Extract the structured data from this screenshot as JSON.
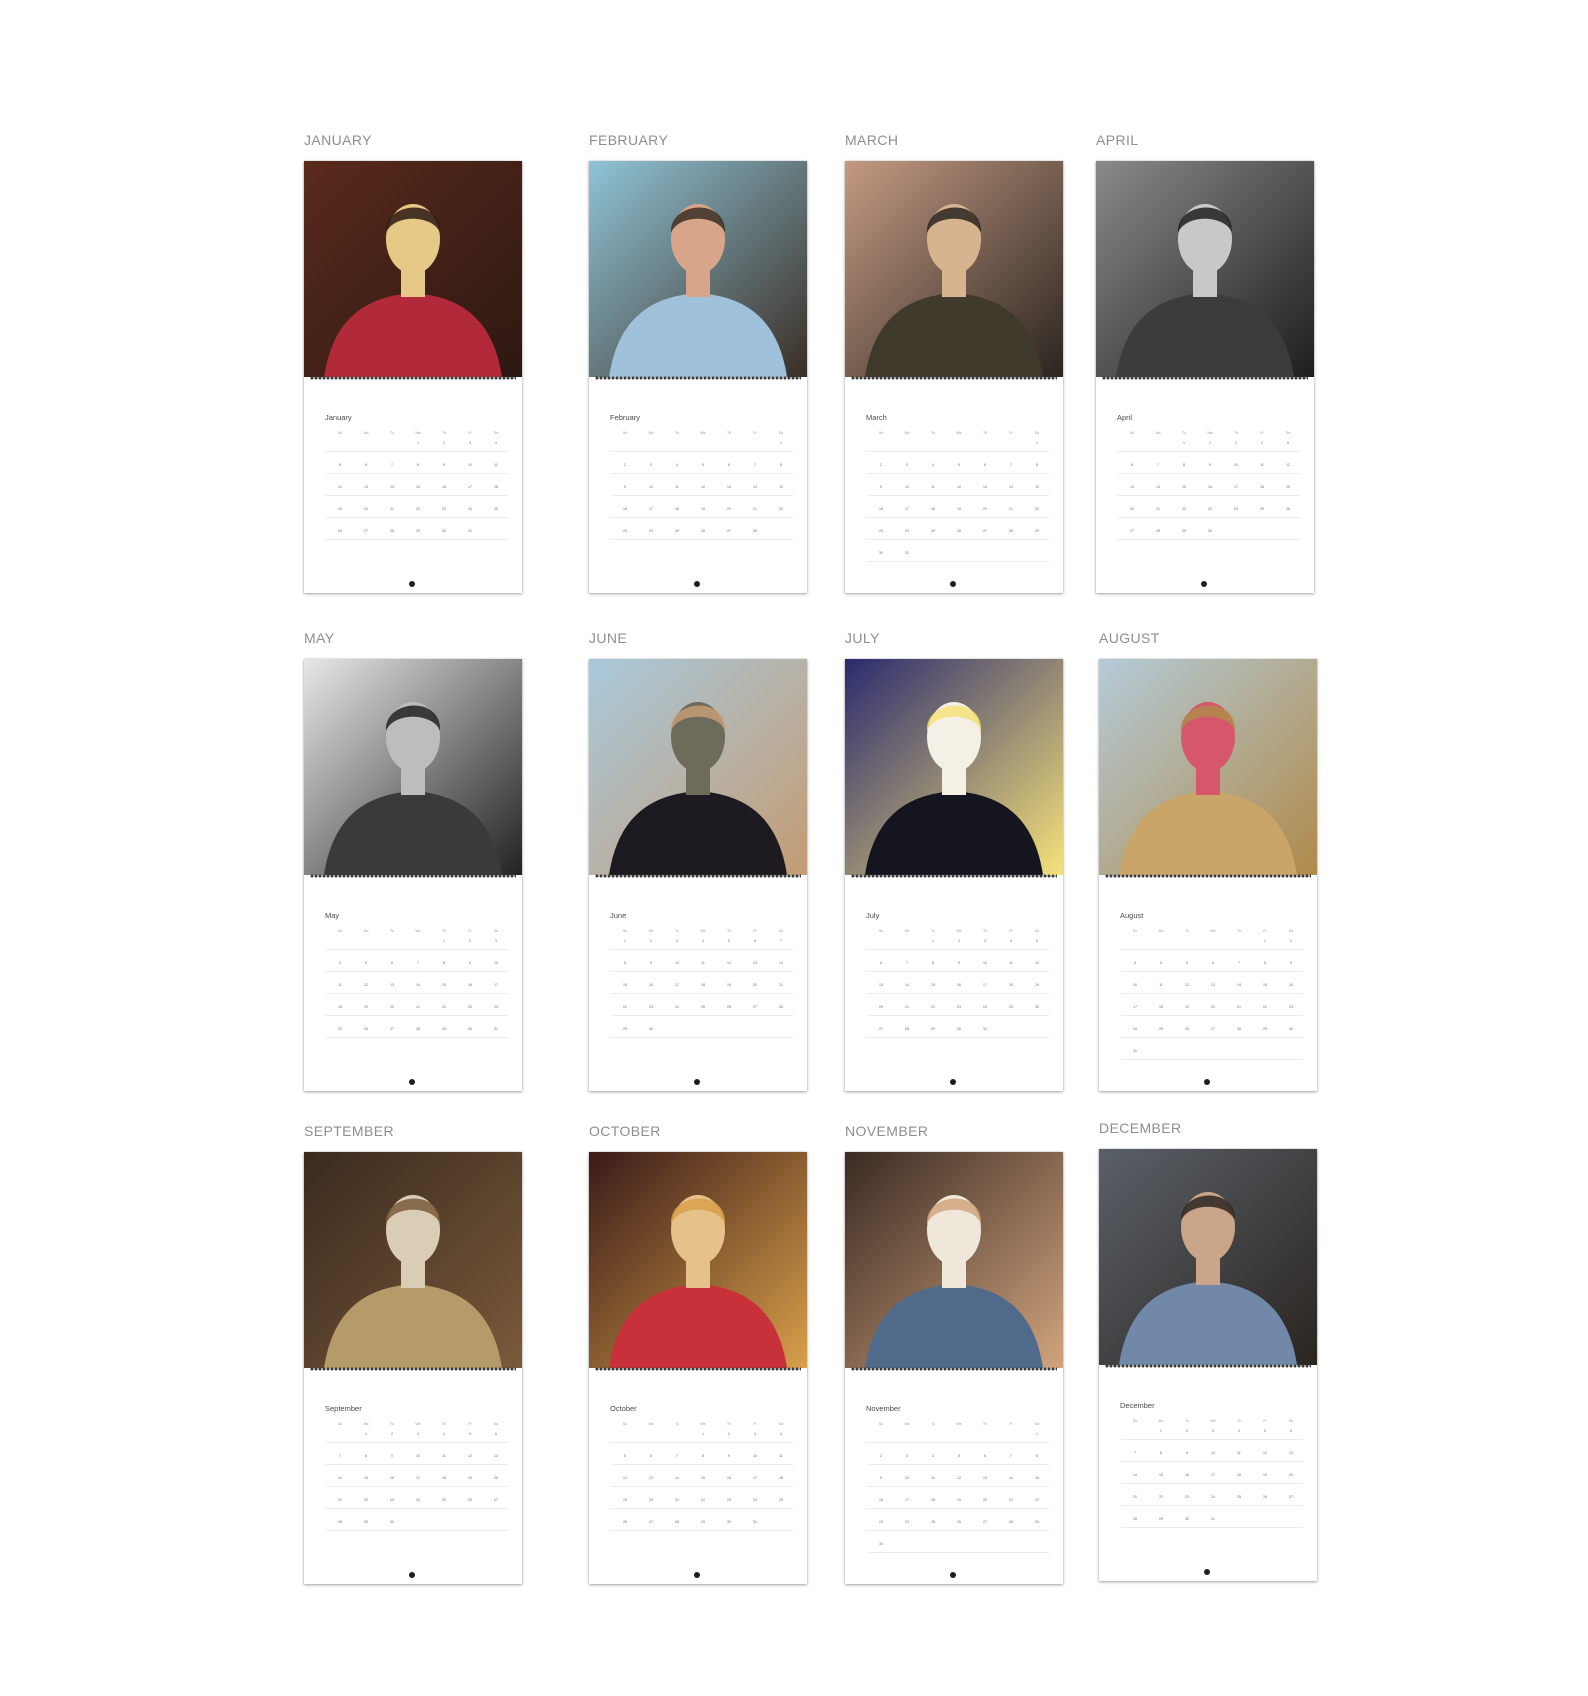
{
  "months": [
    {
      "heading": "JANUARY",
      "mini_title": "January",
      "weekdays": [
        "Su",
        "Mo",
        "Tu",
        "We",
        "Th",
        "Fr",
        "Sa"
      ],
      "weeks": [
        [
          "",
          "",
          "",
          "1",
          "2",
          "3",
          "4"
        ],
        [
          "5",
          "6",
          "7",
          "8",
          "9",
          "10",
          "11"
        ],
        [
          "12",
          "13",
          "14",
          "15",
          "16",
          "17",
          "18"
        ],
        [
          "19",
          "20",
          "21",
          "22",
          "23",
          "24",
          "25"
        ],
        [
          "26",
          "27",
          "28",
          "29",
          "30",
          "31",
          ""
        ]
      ],
      "photo": {
        "subject": "man-in-red-suit",
        "palette": [
          "#5a2a1c",
          "#b22a3a",
          "#e6c987",
          "#2c1812"
        ]
      }
    },
    {
      "heading": "FEBRUARY",
      "mini_title": "February",
      "weekdays": [
        "Su",
        "Mo",
        "Tu",
        "We",
        "Th",
        "Fr",
        "Sa"
      ],
      "weeks": [
        [
          "",
          "",
          "",
          "",
          "",
          "",
          "1"
        ],
        [
          "2",
          "3",
          "4",
          "5",
          "6",
          "7",
          "8"
        ],
        [
          "9",
          "10",
          "11",
          "12",
          "13",
          "14",
          "15"
        ],
        [
          "16",
          "17",
          "18",
          "19",
          "20",
          "21",
          "22"
        ],
        [
          "23",
          "24",
          "25",
          "26",
          "27",
          "28",
          ""
        ]
      ],
      "photo": {
        "subject": "man-selfie-by-sea",
        "palette": [
          "#8fc4d6",
          "#9fc1da",
          "#d9a58a",
          "#3a2e25"
        ]
      }
    },
    {
      "heading": "MARCH",
      "mini_title": "March",
      "weekdays": [
        "Su",
        "Mo",
        "Tu",
        "We",
        "Th",
        "Fr",
        "Sa"
      ],
      "weeks": [
        [
          "",
          "",
          "",
          "",
          "",
          "",
          "1"
        ],
        [
          "2",
          "3",
          "4",
          "5",
          "6",
          "7",
          "8"
        ],
        [
          "9",
          "10",
          "11",
          "12",
          "13",
          "14",
          "15"
        ],
        [
          "16",
          "17",
          "18",
          "19",
          "20",
          "21",
          "22"
        ],
        [
          "23",
          "24",
          "25",
          "26",
          "27",
          "28",
          "29"
        ],
        [
          "30",
          "31",
          "",
          "",
          "",
          "",
          ""
        ]
      ],
      "photo": {
        "subject": "man-in-patterned-shirt",
        "palette": [
          "#c49a82",
          "#3f3a2c",
          "#d5b48f",
          "#2a2520"
        ]
      }
    },
    {
      "heading": "APRIL",
      "mini_title": "April",
      "weekdays": [
        "Su",
        "Mo",
        "Tu",
        "We",
        "Th",
        "Fr",
        "Sa"
      ],
      "weeks": [
        [
          "",
          "",
          "1",
          "2",
          "3",
          "4",
          "5"
        ],
        [
          "6",
          "7",
          "8",
          "9",
          "10",
          "11",
          "12"
        ],
        [
          "13",
          "14",
          "15",
          "16",
          "17",
          "18",
          "19"
        ],
        [
          "20",
          "21",
          "22",
          "23",
          "24",
          "25",
          "26"
        ],
        [
          "27",
          "28",
          "29",
          "30",
          "",
          "",
          ""
        ]
      ],
      "photo": {
        "subject": "man-black-and-white-portrait",
        "palette": [
          "#8a8a8a",
          "#3c3c3c",
          "#c8c8c8",
          "#1e1e1e"
        ]
      }
    },
    {
      "heading": "MAY",
      "mini_title": "May",
      "weekdays": [
        "Su",
        "Mo",
        "Tu",
        "We",
        "Th",
        "Fr",
        "Sa"
      ],
      "weeks": [
        [
          "",
          "",
          "",
          "",
          "1",
          "2",
          "3"
        ],
        [
          "4",
          "5",
          "6",
          "7",
          "8",
          "9",
          "10"
        ],
        [
          "11",
          "12",
          "13",
          "14",
          "15",
          "16",
          "17"
        ],
        [
          "18",
          "19",
          "20",
          "21",
          "22",
          "23",
          "24"
        ],
        [
          "25",
          "26",
          "27",
          "28",
          "29",
          "30",
          "31"
        ]
      ],
      "photo": {
        "subject": "man-black-and-white-profile",
        "palette": [
          "#e8e8e8",
          "#3a3a3a",
          "#bdbdbd",
          "#222222"
        ]
      }
    },
    {
      "heading": "JUNE",
      "mini_title": "June",
      "weekdays": [
        "Su",
        "Mo",
        "Tu",
        "We",
        "Th",
        "Fr",
        "Sa"
      ],
      "weeks": [
        [
          "1",
          "2",
          "3",
          "4",
          "5",
          "6",
          "7"
        ],
        [
          "8",
          "9",
          "10",
          "11",
          "12",
          "13",
          "14"
        ],
        [
          "15",
          "16",
          "17",
          "18",
          "19",
          "20",
          "21"
        ],
        [
          "22",
          "23",
          "24",
          "25",
          "26",
          "27",
          "28"
        ],
        [
          "29",
          "30",
          "",
          "",
          "",
          "",
          ""
        ]
      ],
      "photo": {
        "subject": "man-with-horse",
        "palette": [
          "#a9c9dc",
          "#1d1a22",
          "#6d6b5a",
          "#c49c74"
        ]
      }
    },
    {
      "heading": "JULY",
      "mini_title": "July",
      "weekdays": [
        "Su",
        "Mo",
        "Tu",
        "We",
        "Th",
        "Fr",
        "Sa"
      ],
      "weeks": [
        [
          "",
          "",
          "1",
          "2",
          "3",
          "4",
          "5"
        ],
        [
          "6",
          "7",
          "8",
          "9",
          "10",
          "11",
          "12"
        ],
        [
          "13",
          "14",
          "15",
          "16",
          "17",
          "18",
          "19"
        ],
        [
          "20",
          "21",
          "22",
          "23",
          "24",
          "25",
          "26"
        ],
        [
          "27",
          "28",
          "29",
          "30",
          "31",
          "",
          ""
        ]
      ],
      "photo": {
        "subject": "man-in-leather-jacket-on-stage",
        "palette": [
          "#2a2a6e",
          "#151520",
          "#f4f0e6",
          "#f6e27a"
        ]
      }
    },
    {
      "heading": "AUGUST",
      "mini_title": "August",
      "weekdays": [
        "Su",
        "Mo",
        "Tu",
        "We",
        "Th",
        "Fr",
        "Sa"
      ],
      "weeks": [
        [
          "",
          "",
          "",
          "",
          "",
          "1",
          "2"
        ],
        [
          "3",
          "4",
          "5",
          "6",
          "7",
          "8",
          "9"
        ],
        [
          "10",
          "11",
          "12",
          "13",
          "14",
          "15",
          "16"
        ],
        [
          "17",
          "18",
          "19",
          "20",
          "21",
          "22",
          "23"
        ],
        [
          "24",
          "25",
          "26",
          "27",
          "28",
          "29",
          "30"
        ],
        [
          "31",
          "",
          "",
          "",
          "",
          "",
          ""
        ]
      ],
      "photo": {
        "subject": "man-in-pink-shirt-desert",
        "palette": [
          "#b4cbd8",
          "#c9a56a",
          "#d6576a",
          "#b08a4a"
        ]
      }
    },
    {
      "heading": "SEPTEMBER",
      "mini_title": "September",
      "weekdays": [
        "Su",
        "Mo",
        "Tu",
        "We",
        "Th",
        "Fr",
        "Sa"
      ],
      "weeks": [
        [
          "",
          "1",
          "2",
          "3",
          "4",
          "5",
          "6"
        ],
        [
          "7",
          "8",
          "9",
          "10",
          "11",
          "12",
          "13"
        ],
        [
          "14",
          "15",
          "16",
          "17",
          "18",
          "19",
          "20"
        ],
        [
          "21",
          "22",
          "23",
          "24",
          "25",
          "26",
          "27"
        ],
        [
          "28",
          "29",
          "30",
          "",
          "",
          "",
          ""
        ]
      ],
      "photo": {
        "subject": "man-smiling-henley",
        "palette": [
          "#3a2a1e",
          "#b59a6a",
          "#d9cdb6",
          "#7a5a3a"
        ]
      }
    },
    {
      "heading": "OCTOBER",
      "mini_title": "October",
      "weekdays": [
        "Su",
        "Mo",
        "Tu",
        "We",
        "Th",
        "Fr",
        "Sa"
      ],
      "weeks": [
        [
          "",
          "",
          "",
          "1",
          "2",
          "3",
          "4"
        ],
        [
          "5",
          "6",
          "7",
          "8",
          "9",
          "10",
          "11"
        ],
        [
          "12",
          "13",
          "14",
          "15",
          "16",
          "17",
          "18"
        ],
        [
          "19",
          "20",
          "21",
          "22",
          "23",
          "24",
          "25"
        ],
        [
          "26",
          "27",
          "28",
          "29",
          "30",
          "31",
          ""
        ]
      ],
      "photo": {
        "subject": "man-in-red-suit-reclining",
        "palette": [
          "#3a1a18",
          "#c8303a",
          "#e7c18a",
          "#d8a04a"
        ]
      }
    },
    {
      "heading": "NOVEMBER",
      "mini_title": "November",
      "weekdays": [
        "Su",
        "Mo",
        "Tu",
        "We",
        "Th",
        "Fr",
        "Sa"
      ],
      "weeks": [
        [
          "",
          "",
          "",
          "",
          "",
          "",
          "1"
        ],
        [
          "2",
          "3",
          "4",
          "5",
          "6",
          "7",
          "8"
        ],
        [
          "9",
          "10",
          "11",
          "12",
          "13",
          "14",
          "15"
        ],
        [
          "16",
          "17",
          "18",
          "19",
          "20",
          "21",
          "22"
        ],
        [
          "23",
          "24",
          "25",
          "26",
          "27",
          "28",
          "29"
        ],
        [
          "30",
          "",
          "",
          "",
          "",
          "",
          ""
        ]
      ],
      "photo": {
        "subject": "man-in-denim-jacket",
        "palette": [
          "#3a2a22",
          "#4f6a8a",
          "#efe8da",
          "#d1a47e"
        ]
      }
    },
    {
      "heading": "DECEMBER",
      "mini_title": "December",
      "weekdays": [
        "Su",
        "Mo",
        "Tu",
        "We",
        "Th",
        "Fr",
        "Sa"
      ],
      "weeks": [
        [
          "",
          "1",
          "2",
          "3",
          "4",
          "5",
          "6"
        ],
        [
          "7",
          "8",
          "9",
          "10",
          "11",
          "12",
          "13"
        ],
        [
          "14",
          "15",
          "16",
          "17",
          "18",
          "19",
          "20"
        ],
        [
          "21",
          "22",
          "23",
          "24",
          "25",
          "26",
          "27"
        ],
        [
          "28",
          "29",
          "30",
          "31",
          "",
          "",
          ""
        ]
      ],
      "photo": {
        "subject": "man-in-blue-shirt-portrait",
        "palette": [
          "#5a6068",
          "#7188a8",
          "#caa58a",
          "#2a2520"
        ]
      }
    }
  ]
}
